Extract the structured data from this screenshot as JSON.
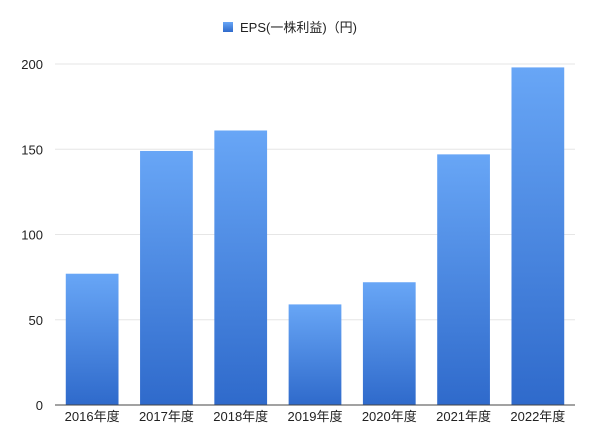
{
  "chart_data": {
    "type": "bar",
    "title": "",
    "xlabel": "",
    "ylabel": "",
    "legend": {
      "placement": "top-center"
    },
    "categories": [
      "2016年度",
      "2017年度",
      "2018年度",
      "2019年度",
      "2020年度",
      "2021年度",
      "2022年度"
    ],
    "series": [
      {
        "name": "EPS(一株利益)（円)",
        "values": [
          77,
          149,
          161,
          59,
          72,
          147,
          198
        ],
        "color": "#4a88e6"
      }
    ],
    "ylim": [
      0,
      200
    ],
    "yticks": [
      "0",
      "50",
      "100",
      "150",
      "200"
    ],
    "grid": true,
    "colors": {
      "bar_top": "#68a6f6",
      "bar_bottom": "#2f6acb",
      "grid": "#e6e6e6",
      "axis": "#444444"
    }
  }
}
